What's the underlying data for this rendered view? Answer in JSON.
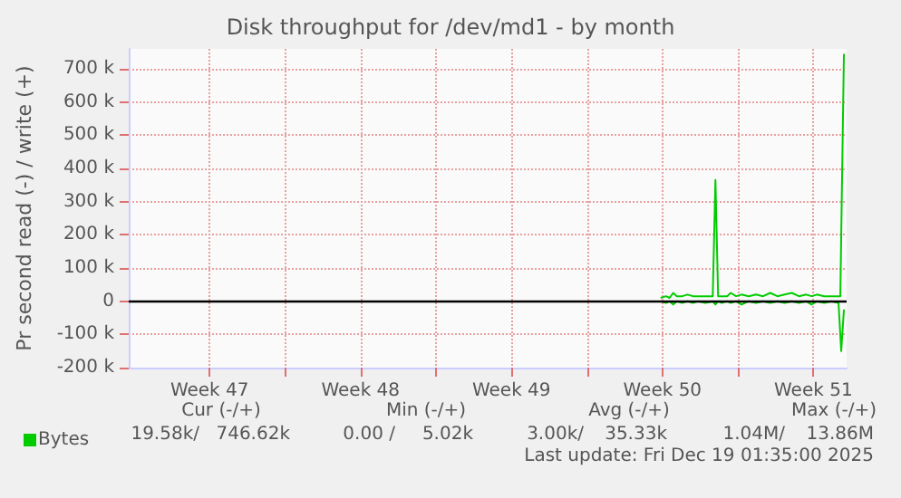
{
  "chart_data": {
    "type": "line",
    "title": "Disk throughput for /dev/md1 - by month",
    "ylabel": "Pr second read (-) / write (+)",
    "xlim": [
      "2025-11-16T18:00",
      "2025-12-20T01:00"
    ],
    "ylim": [
      -200000,
      760000
    ],
    "xticks": [
      {
        "value": "2025-11-20T12:00",
        "label": "Week 47"
      },
      {
        "value": "2025-11-24",
        "label": null
      },
      {
        "value": "2025-11-27T12:00",
        "label": "Week 48"
      },
      {
        "value": "2025-12-01",
        "label": null
      },
      {
        "value": "2025-12-04T12:00",
        "label": "Week 49"
      },
      {
        "value": "2025-12-08",
        "label": null
      },
      {
        "value": "2025-12-11T12:00",
        "label": "Week 50"
      },
      {
        "value": "2025-12-15",
        "label": null
      },
      {
        "value": "2025-12-18T12:00",
        "label": "Week 51"
      }
    ],
    "yticks": [
      {
        "value": -200000,
        "label": "-200 k"
      },
      {
        "value": -100000,
        "label": "-100 k"
      },
      0,
      {
        "value": 100000,
        "label": "100 k"
      },
      {
        "value": 200000,
        "label": "200 k"
      },
      {
        "value": 300000,
        "label": "300 k"
      },
      {
        "value": 400000,
        "label": "400 k"
      },
      {
        "value": 500000,
        "label": "500 k"
      },
      {
        "value": 600000,
        "label": "600 k"
      },
      {
        "value": 700000,
        "label": "700 k"
      }
    ],
    "grid": true,
    "legend": "bottom left",
    "marker": "none",
    "line_style": "solid",
    "ref_lines": [
      {
        "axis": "y",
        "value": 0,
        "color": "#000000"
      }
    ],
    "series": [
      {
        "name": "Bytes",
        "color": "#00cc00",
        "x": [
          "2025-12-11T10:00",
          "2025-12-11T16:00",
          "2025-12-11T20:00",
          "2025-12-12T00:00",
          "2025-12-12T04:00",
          "2025-12-12T10:00",
          "2025-12-12T16:00",
          "2025-12-12T22:00",
          "2025-12-13T04:00",
          "2025-12-13T12:00",
          "2025-12-13T20:00",
          "2025-12-13T23:00",
          "2025-12-14T02:00",
          "2025-12-14T06:00",
          "2025-12-14T12:00",
          "2025-12-14T16:00",
          "2025-12-14T22:00",
          "2025-12-15T04:00",
          "2025-12-15T12:00",
          "2025-12-15T20:00",
          "2025-12-16T04:00",
          "2025-12-16T12:00",
          "2025-12-16T20:00",
          "2025-12-17T04:00",
          "2025-12-17T12:00",
          "2025-12-17T20:00",
          "2025-12-18T04:00",
          "2025-12-18T10:00",
          "2025-12-18T16:00",
          "2025-12-19T00:00",
          "2025-12-19T08:00",
          "2025-12-19T18:00",
          "2025-12-19T22:00"
        ],
        "values": [
          10000,
          15000,
          10000,
          25000,
          15000,
          15000,
          20000,
          15000,
          15000,
          15000,
          15000,
          365000,
          15000,
          15000,
          15000,
          25000,
          15000,
          20000,
          15000,
          20000,
          15000,
          25000,
          15000,
          20000,
          25000,
          15000,
          20000,
          15000,
          20000,
          15000,
          15000,
          15000,
          745000
        ]
      },
      {
        "color": "#00cc00",
        "x": [
          "2025-12-11T10:00",
          "2025-12-11T16:00",
          "2025-12-11T20:00",
          "2025-12-12T00:00",
          "2025-12-12T04:00",
          "2025-12-12T10:00",
          "2025-12-12T16:00",
          "2025-12-12T22:00",
          "2025-12-13T04:00",
          "2025-12-13T12:00",
          "2025-12-13T20:00",
          "2025-12-13T23:00",
          "2025-12-14T02:00",
          "2025-12-14T06:00",
          "2025-12-14T12:00",
          "2025-12-14T16:00",
          "2025-12-14T22:00",
          "2025-12-15T04:00",
          "2025-12-15T12:00",
          "2025-12-15T20:00",
          "2025-12-16T04:00",
          "2025-12-16T12:00",
          "2025-12-16T20:00",
          "2025-12-17T04:00",
          "2025-12-17T12:00",
          "2025-12-17T20:00",
          "2025-12-18T04:00",
          "2025-12-18T10:00",
          "2025-12-18T16:00",
          "2025-12-19T00:00",
          "2025-12-19T08:00",
          "2025-12-19T16:00",
          "2025-12-19T19:00",
          "2025-12-19T22:00"
        ],
        "values": [
          0,
          -5000,
          0,
          -10000,
          0,
          -5000,
          0,
          -5000,
          0,
          -5000,
          0,
          -10000,
          0,
          -5000,
          0,
          -5000,
          0,
          -10000,
          0,
          -5000,
          0,
          -5000,
          0,
          -5000,
          0,
          -5000,
          0,
          -10000,
          0,
          -5000,
          0,
          -5000,
          -150000,
          -25000
        ]
      }
    ],
    "annotations": [
      "Cur (-/+)",
      "Min (-/+)",
      "Avg (-/+)",
      "Max (-/+)",
      "19.58k/",
      "746.62k",
      "0.00 /",
      "5.02k",
      "3.00k/",
      "35.33k",
      "1.04M/",
      "13.86M",
      "Last update: Fri Dec 19 01:35:00 2025"
    ]
  }
}
